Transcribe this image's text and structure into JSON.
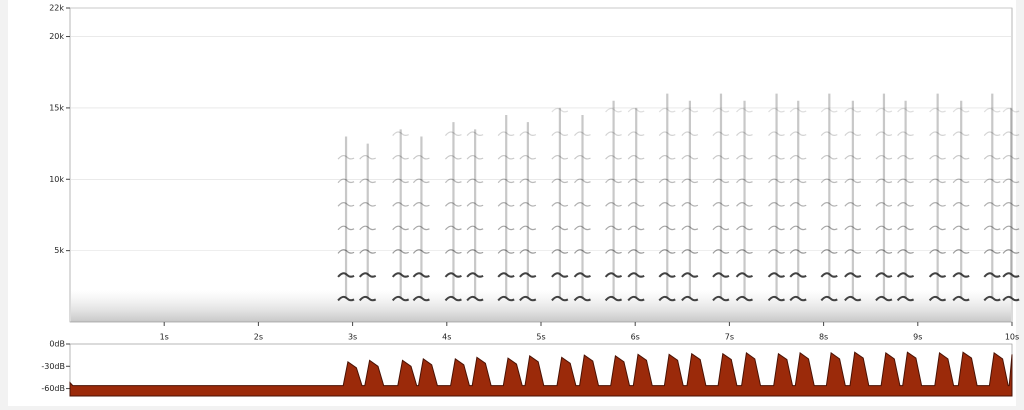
{
  "chart_data": [
    {
      "type": "spectrogram",
      "x": [
        2.92,
        3.15,
        3.5,
        3.72,
        4.06,
        4.29,
        4.62,
        4.85,
        5.19,
        5.43,
        5.76,
        6.0,
        6.33,
        6.57,
        6.9,
        7.15,
        7.49,
        7.72,
        8.05,
        8.3,
        8.63,
        8.86,
        9.2,
        9.45,
        9.78,
        9.98
      ],
      "values": [
        13000,
        12500,
        13500,
        13000,
        14000,
        13500,
        14500,
        14000,
        15000,
        14500,
        15500,
        15000,
        16000,
        15500,
        16000,
        15500,
        16000,
        15500,
        16000,
        15500,
        16000,
        15500,
        16000,
        15500,
        16000,
        15000
      ],
      "color": "#222222",
      "xlim": [
        0,
        10
      ],
      "ylim": [
        0,
        22000
      ],
      "xticks": [
        {
          "value": 1,
          "label": "1s"
        },
        {
          "value": 2,
          "label": "2s"
        },
        {
          "value": 3,
          "label": "3s"
        },
        {
          "value": 4,
          "label": "4s"
        },
        {
          "value": 5,
          "label": "5s"
        },
        {
          "value": 6,
          "label": "6s"
        },
        {
          "value": 7,
          "label": "7s"
        },
        {
          "value": 8,
          "label": "8s"
        },
        {
          "value": 9,
          "label": "9s"
        },
        {
          "value": 10,
          "label": "10s"
        }
      ],
      "yticks": [
        {
          "value": 5000,
          "label": "5k"
        },
        {
          "value": 10000,
          "label": "10k"
        },
        {
          "value": 15000,
          "label": "15k"
        },
        {
          "value": 20000,
          "label": "20k"
        },
        {
          "value": 22000,
          "label": "22k"
        }
      ],
      "grid": true
    },
    {
      "type": "area",
      "x": [
        0,
        0.03,
        2.85,
        2.9,
        2.95,
        3.04,
        3.1,
        3.13,
        3.18,
        3.27,
        3.33,
        3.48,
        3.53,
        3.62,
        3.68,
        3.7,
        3.75,
        3.84,
        3.9,
        4.04,
        4.09,
        4.18,
        4.24,
        4.27,
        4.32,
        4.41,
        4.47,
        4.6,
        4.65,
        4.74,
        4.8,
        4.83,
        4.88,
        4.97,
        5.03,
        5.17,
        5.22,
        5.31,
        5.37,
        5.41,
        5.46,
        5.55,
        5.61,
        5.74,
        5.79,
        5.88,
        5.94,
        5.98,
        6.03,
        6.12,
        6.18,
        6.31,
        6.36,
        6.45,
        6.51,
        6.55,
        6.6,
        6.69,
        6.75,
        6.88,
        6.93,
        7.02,
        7.08,
        7.13,
        7.18,
        7.27,
        7.33,
        7.47,
        7.52,
        7.61,
        7.67,
        7.7,
        7.75,
        7.84,
        7.9,
        8.03,
        8.08,
        8.17,
        8.23,
        8.28,
        8.33,
        8.42,
        8.48,
        8.61,
        8.66,
        8.75,
        8.81,
        8.84,
        8.89,
        8.98,
        9.04,
        9.18,
        9.23,
        9.32,
        9.38,
        9.43,
        9.48,
        9.57,
        9.63,
        9.76,
        9.81,
        9.9,
        9.96,
        9.97,
        10
      ],
      "values": [
        -52,
        -56,
        -56,
        -56,
        -24,
        -32,
        -56,
        -56,
        -22,
        -30,
        -56,
        -56,
        -22,
        -30,
        -56,
        -56,
        -20,
        -28,
        -56,
        -56,
        -20,
        -28,
        -56,
        -56,
        -18,
        -26,
        -56,
        -56,
        -19,
        -27,
        -56,
        -56,
        -16,
        -24,
        -56,
        -56,
        -18,
        -26,
        -56,
        -56,
        -15,
        -23,
        -56,
        -56,
        -16,
        -24,
        -56,
        -56,
        -14,
        -22,
        -56,
        -56,
        -14,
        -22,
        -56,
        -56,
        -13,
        -21,
        -56,
        -56,
        -13,
        -21,
        -56,
        -56,
        -12,
        -20,
        -56,
        -56,
        -13,
        -21,
        -56,
        -56,
        -12,
        -20,
        -56,
        -56,
        -12,
        -20,
        -56,
        -56,
        -11,
        -19,
        -56,
        -56,
        -12,
        -20,
        -56,
        -56,
        -11,
        -19,
        -56,
        -56,
        -12,
        -20,
        -56,
        -56,
        -11,
        -19,
        -56,
        -56,
        -12,
        -20,
        -56,
        -56,
        -14
      ],
      "color": "#9b2a0a",
      "xlim": [
        0,
        10
      ],
      "ylim": [
        -70,
        0
      ],
      "yticks": [
        {
          "value": 0,
          "label": "0dB"
        },
        {
          "value": -30,
          "label": "-30dB"
        },
        {
          "value": -60,
          "label": "-60dB"
        }
      ]
    }
  ]
}
